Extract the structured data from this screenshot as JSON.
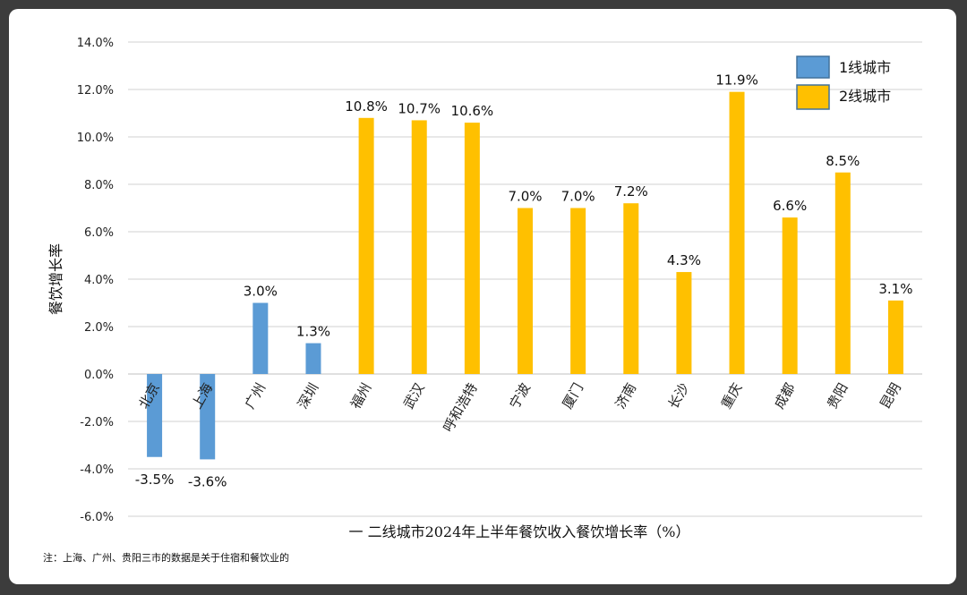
{
  "chart_data": {
    "type": "bar",
    "categories": [
      "北京",
      "上海",
      "广州",
      "深圳",
      "福州",
      "武汉",
      "呼和浩特",
      "宁波",
      "厦门",
      "济南",
      "长沙",
      "重庆",
      "成都",
      "贵阳",
      "昆明"
    ],
    "values": [
      -3.5,
      -3.6,
      3.0,
      1.3,
      10.8,
      10.7,
      10.6,
      7.0,
      7.0,
      7.2,
      4.3,
      11.9,
      6.6,
      8.5,
      3.1
    ],
    "data_labels": [
      "-3.5%",
      "-3.6%",
      "3.0%",
      "1.3%",
      "10.8%",
      "10.7%",
      "10.6%",
      "7.0%",
      "7.0%",
      "7.2%",
      "4.3%",
      "11.9%",
      "6.6%",
      "8.5%",
      "3.1%"
    ],
    "groups": [
      1,
      1,
      1,
      1,
      2,
      2,
      2,
      2,
      2,
      2,
      2,
      2,
      2,
      2,
      2
    ],
    "series": [
      {
        "name": "1线城市",
        "color": "#5b9bd5"
      },
      {
        "name": "2线城市",
        "color": "#ffc000"
      }
    ],
    "ylabel": "餐饮增长率",
    "ylim": [
      -6,
      14
    ],
    "yticks": [
      -6,
      -4,
      -2,
      0,
      2,
      4,
      6,
      8,
      10,
      12,
      14
    ],
    "ytick_labels": [
      "-6.0%",
      "-4.0%",
      "-2.0%",
      "0.0%",
      "2.0%",
      "4.0%",
      "6.0%",
      "8.0%",
      "10.0%",
      "12.0%",
      "14.0%"
    ],
    "grid": true,
    "legend_position": "top-right"
  },
  "caption": "一 二线城市2024年上半年餐饮收入餐饮增长率（%）",
  "note": "注：上海、广州、贵阳三市的数据是关于住宿和餐饮业的"
}
